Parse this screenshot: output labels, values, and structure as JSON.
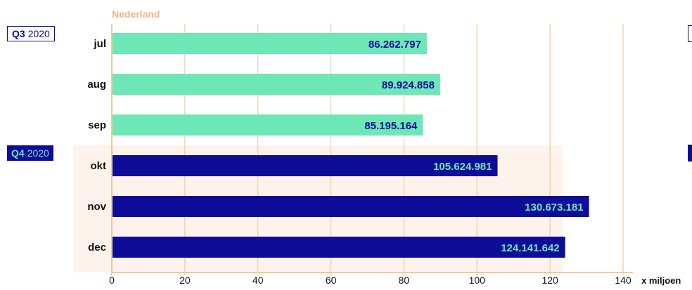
{
  "colors": {
    "q3_bar": "#6ee7b7",
    "q4_bar": "#0d0d99",
    "q3_label": "#0d0d99",
    "q4_label": "#6ee7b7",
    "grid": "#f5c89a",
    "title": "#f5b57f",
    "q4_band": "#fdf3ec",
    "text": "#111111"
  },
  "quarters": [
    {
      "code": "Q3",
      "year": "2020"
    },
    {
      "code": "Q4",
      "year": "2020"
    }
  ],
  "chart_data": {
    "type": "bar",
    "orientation": "horizontal",
    "title": "Nederland",
    "xlabel": "x miljoen",
    "xlim": [
      0,
      140
    ],
    "xticks": [
      "0",
      "20",
      "40",
      "60",
      "80",
      "100",
      "120",
      "140"
    ],
    "grid": true,
    "categories": [
      "jul",
      "aug",
      "sep",
      "okt",
      "nov",
      "dec"
    ],
    "values": [
      86262797,
      89924858,
      85195164,
      105624981,
      130673181,
      124141642
    ],
    "data_labels": [
      "86.262.797",
      "89.924.858",
      "85.195.164",
      "105.624.981",
      "130.673.181",
      "124.141.642"
    ],
    "groups": [
      "Q3",
      "Q3",
      "Q3",
      "Q4",
      "Q4",
      "Q4"
    ]
  }
}
